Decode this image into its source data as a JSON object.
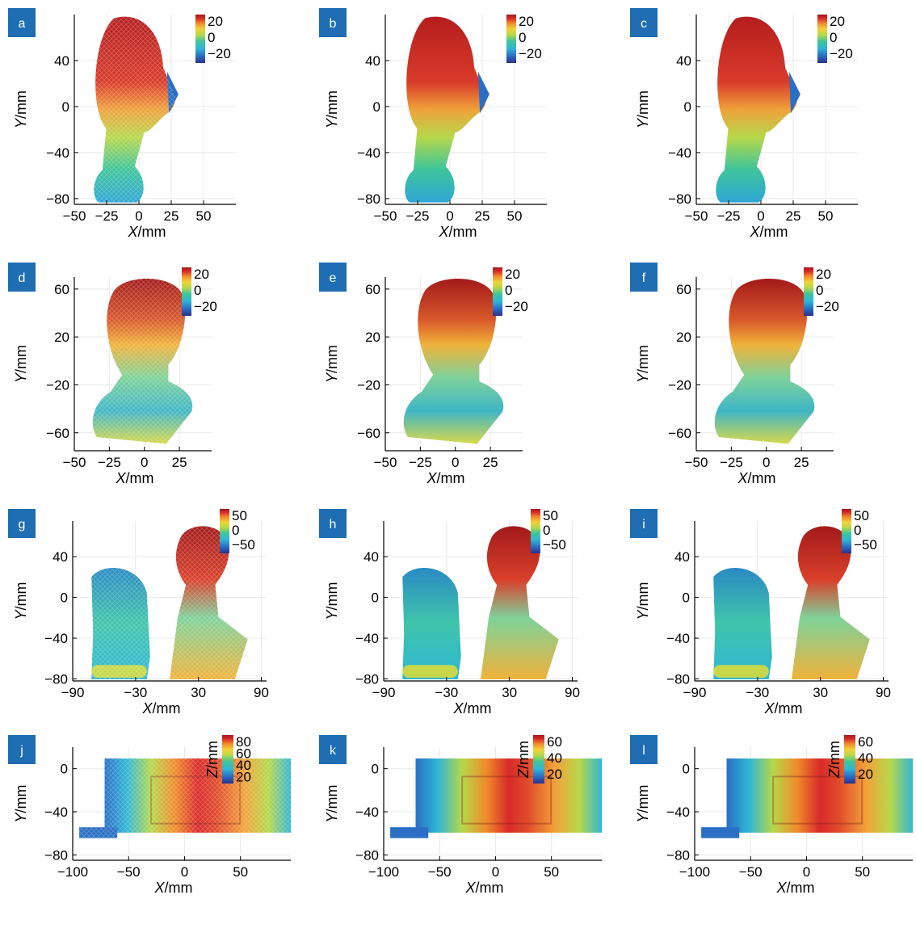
{
  "colors": {
    "panel_label_bg": "#1f6db3",
    "colormap": [
      "#2c2f8c",
      "#2a6fc4",
      "#2fb6d6",
      "#3fc59a",
      "#b6d84a",
      "#f2d23a",
      "#f08a2a",
      "#d92a2a",
      "#a31a1a"
    ]
  },
  "chart_data": [
    {
      "panel": "a",
      "type": "surface",
      "xlabel": "X/mm",
      "ylabel": "Y/mm",
      "xlim": [
        -50,
        75
      ],
      "ylim": [
        -85,
        80
      ],
      "xticks": [
        "−50",
        "−25",
        "0",
        "25",
        "50"
      ],
      "xtick_values": [
        -50,
        -25,
        0,
        25,
        50
      ],
      "yticks": [
        "40",
        "0",
        "−40",
        "−80"
      ],
      "ytick_values": [
        40,
        0,
        -40,
        -80
      ],
      "colorbar_ticks": [
        "20",
        "0",
        "−20"
      ],
      "colorbar_label": "",
      "subject": "head profile (side view)",
      "quality": "noisy"
    },
    {
      "panel": "b",
      "type": "surface",
      "xlabel": "X/mm",
      "ylabel": "Y/mm",
      "xlim": [
        -50,
        75
      ],
      "ylim": [
        -85,
        80
      ],
      "xticks": [
        "−50",
        "−25",
        "0",
        "25",
        "50"
      ],
      "xtick_values": [
        -50,
        -25,
        0,
        25,
        50
      ],
      "yticks": [
        "40",
        "0",
        "−40",
        "−80"
      ],
      "ytick_values": [
        40,
        0,
        -40,
        -80
      ],
      "colorbar_ticks": [
        "20",
        "0",
        "−20"
      ],
      "colorbar_label": "",
      "subject": "head profile (side view)",
      "quality": "smooth"
    },
    {
      "panel": "c",
      "type": "surface",
      "xlabel": "X/mm",
      "ylabel": "Y/mm",
      "xlim": [
        -50,
        75
      ],
      "ylim": [
        -85,
        80
      ],
      "xticks": [
        "−50",
        "−25",
        "0",
        "25",
        "50"
      ],
      "xtick_values": [
        -50,
        -25,
        0,
        25,
        50
      ],
      "yticks": [
        "40",
        "0",
        "−40",
        "−80"
      ],
      "ytick_values": [
        40,
        0,
        -40,
        -80
      ],
      "colorbar_ticks": [
        "20",
        "0",
        "−20"
      ],
      "colorbar_label": "",
      "subject": "head profile (side view)",
      "quality": "smooth"
    },
    {
      "panel": "d",
      "type": "surface",
      "xlabel": "X/mm",
      "ylabel": "Y/mm",
      "xlim": [
        -50,
        48
      ],
      "ylim": [
        -75,
        70
      ],
      "xticks": [
        "−50",
        "−25",
        "0",
        "25"
      ],
      "xtick_values": [
        -50,
        -25,
        0,
        25
      ],
      "yticks": [
        "60",
        "20",
        "−20",
        "−60"
      ],
      "ytick_values": [
        60,
        20,
        -20,
        -60
      ],
      "colorbar_ticks": [
        "20",
        "0",
        "−20"
      ],
      "colorbar_label": "",
      "subject": "bust (front view)",
      "quality": "noisy"
    },
    {
      "panel": "e",
      "type": "surface",
      "xlabel": "X/mm",
      "ylabel": "Y/mm",
      "xlim": [
        -50,
        48
      ],
      "ylim": [
        -75,
        70
      ],
      "xticks": [
        "−50",
        "−25",
        "0",
        "25"
      ],
      "xtick_values": [
        -50,
        -25,
        0,
        25
      ],
      "yticks": [
        "60",
        "20",
        "−20",
        "−60"
      ],
      "ytick_values": [
        60,
        20,
        -20,
        -60
      ],
      "colorbar_ticks": [
        "20",
        "0",
        "−20"
      ],
      "colorbar_label": "",
      "subject": "bust (front view)",
      "quality": "smooth"
    },
    {
      "panel": "f",
      "type": "surface",
      "xlabel": "X/mm",
      "ylabel": "Y/mm",
      "xlim": [
        -50,
        48
      ],
      "ylim": [
        -75,
        70
      ],
      "xticks": [
        "−50",
        "−25",
        "0",
        "25"
      ],
      "xtick_values": [
        -50,
        -25,
        0,
        25
      ],
      "yticks": [
        "60",
        "20",
        "−20",
        "−60"
      ],
      "ytick_values": [
        60,
        20,
        -20,
        -60
      ],
      "colorbar_ticks": [
        "20",
        "0",
        "−20"
      ],
      "colorbar_label": "",
      "subject": "bust (front view)",
      "quality": "smooth"
    },
    {
      "panel": "g",
      "type": "surface",
      "xlabel": "X/mm",
      "ylabel": "Y/mm",
      "xlim": [
        -90,
        95
      ],
      "ylim": [
        -82,
        75
      ],
      "xticks": [
        "−90",
        "−30",
        "30",
        "90"
      ],
      "xtick_values": [
        -90,
        -30,
        30,
        90
      ],
      "yticks": [
        "40",
        "0",
        "−40",
        "−80"
      ],
      "ytick_values": [
        40,
        0,
        -40,
        -80
      ],
      "colorbar_ticks": [
        "50",
        "0",
        "−50"
      ],
      "colorbar_label": "",
      "subject": "two busts",
      "quality": "noisy"
    },
    {
      "panel": "h",
      "type": "surface",
      "xlabel": "X/mm",
      "ylabel": "Y/mm",
      "xlim": [
        -90,
        95
      ],
      "ylim": [
        -82,
        75
      ],
      "xticks": [
        "−90",
        "−30",
        "30",
        "90"
      ],
      "xtick_values": [
        -90,
        -30,
        30,
        90
      ],
      "yticks": [
        "40",
        "0",
        "−40",
        "−80"
      ],
      "ytick_values": [
        40,
        0,
        -40,
        -80
      ],
      "colorbar_ticks": [
        "50",
        "0",
        "−50"
      ],
      "colorbar_label": "",
      "subject": "two busts",
      "quality": "smooth"
    },
    {
      "panel": "i",
      "type": "surface",
      "xlabel": "X/mm",
      "ylabel": "Y/mm",
      "xlim": [
        -90,
        95
      ],
      "ylim": [
        -82,
        75
      ],
      "xticks": [
        "−90",
        "−30",
        "30",
        "90"
      ],
      "xtick_values": [
        -90,
        -30,
        30,
        90
      ],
      "yticks": [
        "40",
        "0",
        "−40",
        "−80"
      ],
      "ytick_values": [
        40,
        0,
        -40,
        -80
      ],
      "colorbar_ticks": [
        "50",
        "0",
        "−50"
      ],
      "colorbar_label": "",
      "subject": "two busts",
      "quality": "smooth"
    },
    {
      "panel": "j",
      "type": "surface",
      "xlabel": "X/mm",
      "ylabel": "Y/mm",
      "xlim": [
        -100,
        95
      ],
      "ylim": [
        -85,
        20
      ],
      "xticks": [
        "−100",
        "−50",
        "0",
        "50"
      ],
      "xtick_values": [
        -100,
        -50,
        0,
        50
      ],
      "yticks": [
        "0",
        "−40",
        "−80"
      ],
      "ytick_values": [
        0,
        -40,
        -80
      ],
      "colorbar_ticks": [
        "80",
        "60",
        "40",
        "20"
      ],
      "colorbar_label": "Z/mm",
      "subject": "mechanical part",
      "quality": "noisy"
    },
    {
      "panel": "k",
      "type": "surface",
      "xlabel": "X/mm",
      "ylabel": "Y/mm",
      "xlim": [
        -100,
        95
      ],
      "ylim": [
        -85,
        20
      ],
      "xticks": [
        "−100",
        "−50",
        "0",
        "50"
      ],
      "xtick_values": [
        -100,
        -50,
        0,
        50
      ],
      "yticks": [
        "0",
        "−40",
        "−80"
      ],
      "ytick_values": [
        0,
        -40,
        -80
      ],
      "colorbar_ticks": [
        "60",
        "40",
        "20"
      ],
      "colorbar_label": "Z/mm",
      "subject": "mechanical part",
      "quality": "smooth"
    },
    {
      "panel": "l",
      "type": "surface",
      "xlabel": "X/mm",
      "ylabel": "Y/mm",
      "xlim": [
        -100,
        95
      ],
      "ylim": [
        -85,
        20
      ],
      "xticks": [
        "−100",
        "−50",
        "0",
        "50"
      ],
      "xtick_values": [
        -100,
        -50,
        0,
        50
      ],
      "yticks": [
        "0",
        "−40",
        "−80"
      ],
      "ytick_values": [
        0,
        -40,
        -80
      ],
      "colorbar_ticks": [
        "60",
        "40",
        "20"
      ],
      "colorbar_label": "Z/mm",
      "subject": "mechanical part",
      "quality": "smooth"
    }
  ]
}
